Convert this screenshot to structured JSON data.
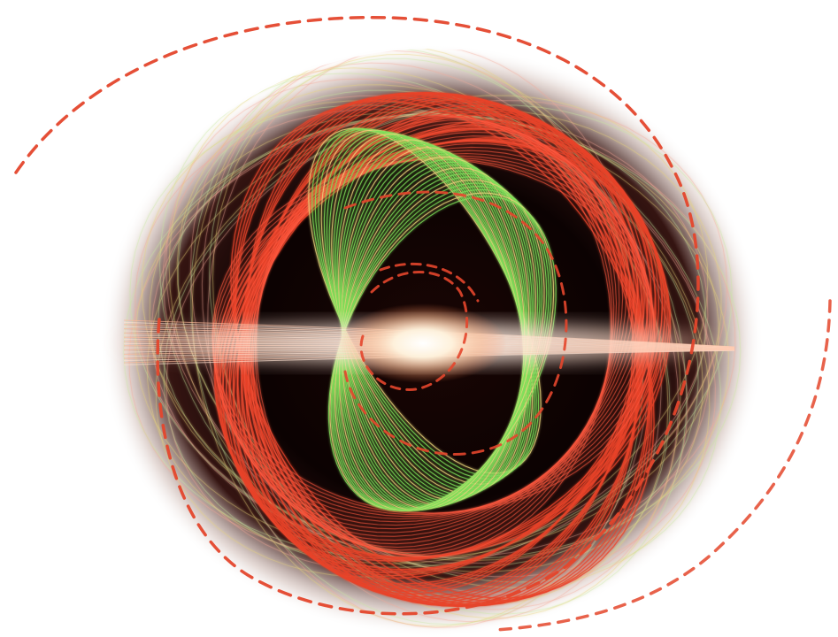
{
  "image": {
    "subject": "",
    "colors": {
      "background": "#ffffff",
      "disk_dark": "#060101",
      "red_trace": "#e8432a",
      "green_trace": "#7fe05a",
      "yellow_trace": "#e7d47a",
      "core_glow": "#fff6e8",
      "spiral_dash": "#e4462c"
    }
  }
}
